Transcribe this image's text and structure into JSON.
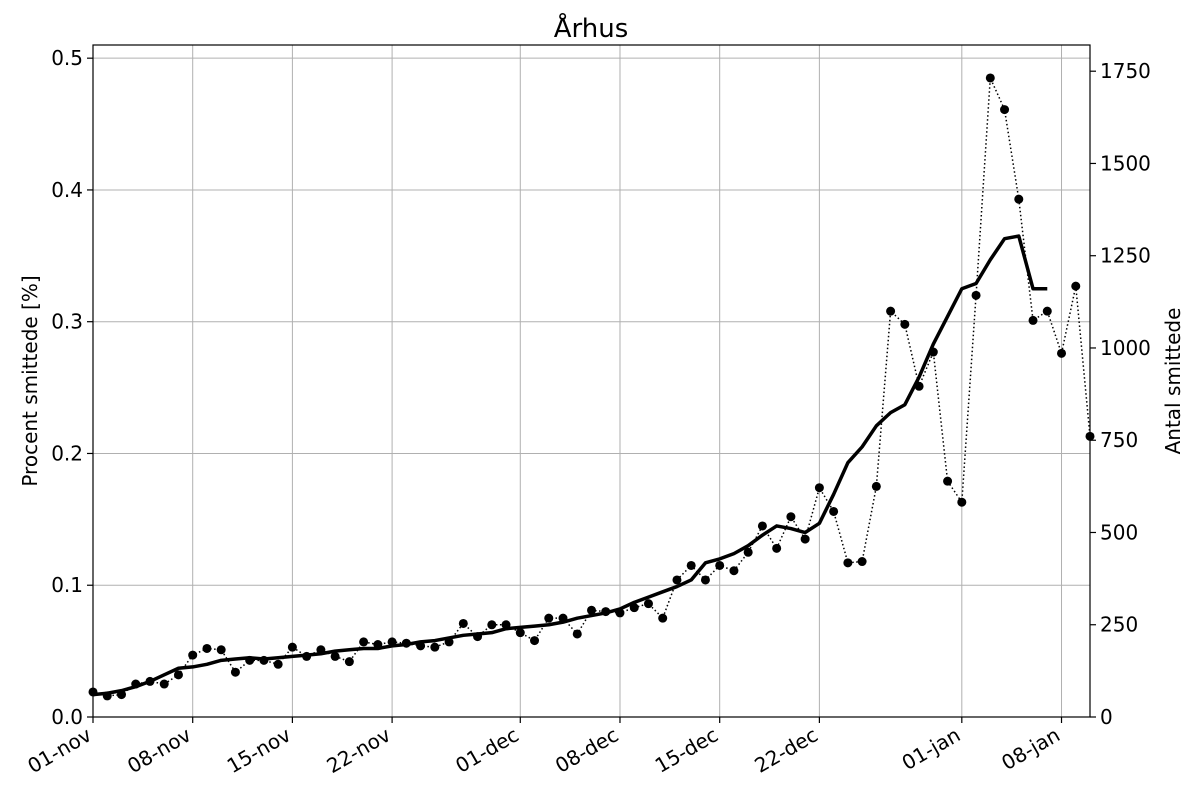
{
  "chart_data": {
    "type": "line",
    "title": "Århus",
    "ylabel": "Procent smittede [%]",
    "y2label": "Antal smittede",
    "ylim": [
      0,
      0.51
    ],
    "y2lim": [
      0,
      1821
    ],
    "xlim": [
      "2020-11-01",
      "2021-01-10"
    ],
    "grid": true,
    "yticks": [
      0.0,
      0.1,
      0.2,
      0.3,
      0.4,
      0.5
    ],
    "ytick_labels": [
      "0.0",
      "0.1",
      "0.2",
      "0.3",
      "0.4",
      "0.5"
    ],
    "y2ticks": [
      0,
      250,
      500,
      750,
      1000,
      1250,
      1500,
      1750
    ],
    "y2tick_labels": [
      "0",
      "250",
      "500",
      "750",
      "1000",
      "1250",
      "1500",
      "1750"
    ],
    "xticks": [
      "2020-11-01",
      "2020-11-08",
      "2020-11-15",
      "2020-11-22",
      "2020-12-01",
      "2020-12-08",
      "2020-12-15",
      "2020-12-22",
      "2021-01-01",
      "2021-01-08"
    ],
    "xtick_labels": [
      "01-nov",
      "08-nov",
      "15-nov",
      "22-nov",
      "01-dec",
      "08-dec",
      "15-dec",
      "22-dec",
      "01-jan",
      "08-jan"
    ],
    "series": [
      {
        "style": "dotted-markers",
        "color": "#000000",
        "x": [
          "2020-11-01",
          "2020-11-02",
          "2020-11-03",
          "2020-11-04",
          "2020-11-05",
          "2020-11-06",
          "2020-11-07",
          "2020-11-08",
          "2020-11-09",
          "2020-11-10",
          "2020-11-11",
          "2020-11-12",
          "2020-11-13",
          "2020-11-14",
          "2020-11-15",
          "2020-11-16",
          "2020-11-17",
          "2020-11-18",
          "2020-11-19",
          "2020-11-20",
          "2020-11-21",
          "2020-11-22",
          "2020-11-23",
          "2020-11-24",
          "2020-11-25",
          "2020-11-26",
          "2020-11-27",
          "2020-11-28",
          "2020-11-29",
          "2020-11-30",
          "2020-12-01",
          "2020-12-02",
          "2020-12-03",
          "2020-12-04",
          "2020-12-05",
          "2020-12-06",
          "2020-12-07",
          "2020-12-08",
          "2020-12-09",
          "2020-12-10",
          "2020-12-11",
          "2020-12-12",
          "2020-12-13",
          "2020-12-14",
          "2020-12-15",
          "2020-12-16",
          "2020-12-17",
          "2020-12-18",
          "2020-12-19",
          "2020-12-20",
          "2020-12-21",
          "2020-12-22",
          "2020-12-23",
          "2020-12-24",
          "2020-12-25",
          "2020-12-26",
          "2020-12-27",
          "2020-12-28",
          "2020-12-29",
          "2020-12-30",
          "2020-12-31",
          "2021-01-01",
          "2021-01-02",
          "2021-01-03",
          "2021-01-04",
          "2021-01-05",
          "2021-01-06",
          "2021-01-07",
          "2021-01-08",
          "2021-01-09",
          "2021-01-10"
        ],
        "y": [
          0.019,
          0.016,
          0.017,
          0.025,
          0.027,
          0.025,
          0.032,
          0.047,
          0.052,
          0.051,
          0.034,
          0.043,
          0.043,
          0.04,
          0.053,
          0.046,
          0.051,
          0.046,
          0.042,
          0.057,
          0.055,
          0.057,
          0.056,
          0.054,
          0.053,
          0.057,
          0.071,
          0.061,
          0.07,
          0.07,
          0.064,
          0.058,
          0.075,
          0.075,
          0.063,
          0.081,
          0.08,
          0.079,
          0.083,
          0.086,
          0.075,
          0.104,
          0.115,
          0.104,
          0.115,
          0.111,
          0.125,
          0.145,
          0.128,
          0.152,
          0.135,
          0.174,
          0.156,
          0.117,
          0.118,
          0.175,
          0.308,
          0.298,
          0.251,
          0.277,
          0.179,
          0.163,
          0.32,
          0.485,
          0.461,
          0.393,
          0.301,
          0.308,
          0.276,
          0.327,
          0.213
        ]
      },
      {
        "style": "solid",
        "color": "#000000",
        "x": [
          "2020-11-01",
          "2020-11-02",
          "2020-11-03",
          "2020-11-04",
          "2020-11-05",
          "2020-11-06",
          "2020-11-07",
          "2020-11-08",
          "2020-11-09",
          "2020-11-10",
          "2020-11-11",
          "2020-11-12",
          "2020-11-13",
          "2020-11-14",
          "2020-11-15",
          "2020-11-16",
          "2020-11-17",
          "2020-11-18",
          "2020-11-19",
          "2020-11-20",
          "2020-11-21",
          "2020-11-22",
          "2020-11-23",
          "2020-11-24",
          "2020-11-25",
          "2020-11-26",
          "2020-11-27",
          "2020-11-28",
          "2020-11-29",
          "2020-11-30",
          "2020-12-01",
          "2020-12-02",
          "2020-12-03",
          "2020-12-04",
          "2020-12-05",
          "2020-12-06",
          "2020-12-07",
          "2020-12-08",
          "2020-12-09",
          "2020-12-10",
          "2020-12-11",
          "2020-12-12",
          "2020-12-13",
          "2020-12-14",
          "2020-12-15",
          "2020-12-16",
          "2020-12-17",
          "2020-12-18",
          "2020-12-19",
          "2020-12-20",
          "2020-12-21",
          "2020-12-22",
          "2020-12-23",
          "2020-12-24",
          "2020-12-25",
          "2020-12-26",
          "2020-12-27",
          "2020-12-28",
          "2020-12-29",
          "2020-12-30",
          "2020-12-31",
          "2021-01-01",
          "2021-01-02",
          "2021-01-03",
          "2021-01-04",
          "2021-01-05",
          "2021-01-06",
          "2021-01-07"
        ],
        "y": [
          0.017,
          0.018,
          0.02,
          0.023,
          0.027,
          0.032,
          0.037,
          0.038,
          0.04,
          0.043,
          0.044,
          0.045,
          0.044,
          0.045,
          0.046,
          0.047,
          0.048,
          0.05,
          0.051,
          0.052,
          0.052,
          0.054,
          0.055,
          0.057,
          0.058,
          0.06,
          0.062,
          0.063,
          0.064,
          0.067,
          0.068,
          0.069,
          0.07,
          0.072,
          0.075,
          0.077,
          0.079,
          0.082,
          0.087,
          0.091,
          0.095,
          0.099,
          0.104,
          0.117,
          0.12,
          0.124,
          0.13,
          0.138,
          0.145,
          0.143,
          0.14,
          0.147,
          0.169,
          0.193,
          0.205,
          0.221,
          0.231,
          0.237,
          0.258,
          0.283,
          0.304,
          0.325,
          0.329,
          0.347,
          0.363,
          0.365,
          0.325,
          0.325
        ]
      }
    ]
  }
}
